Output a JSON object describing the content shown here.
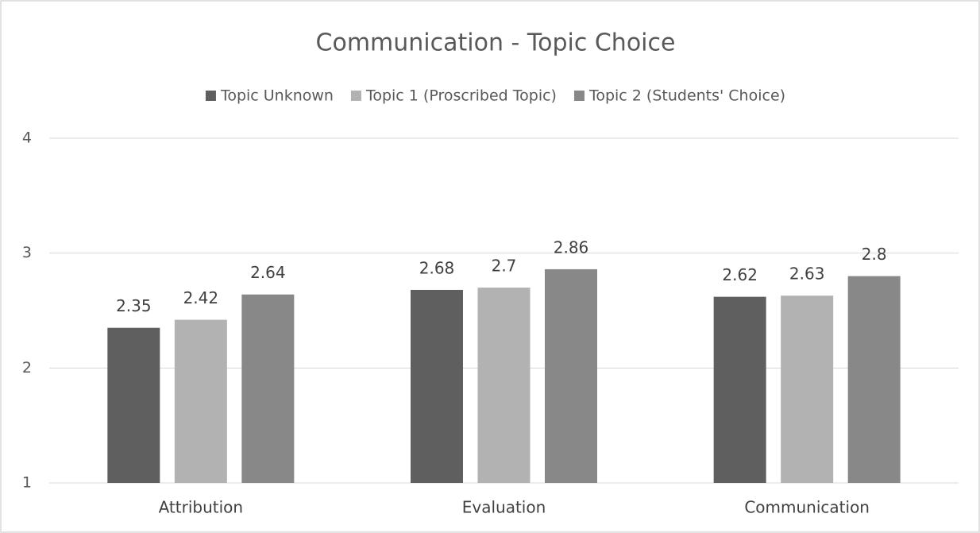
{
  "chart_data": {
    "type": "bar",
    "title": "Communication - Topic Choice",
    "categories": [
      "Attribution",
      "Evaluation",
      "Communication"
    ],
    "series": [
      {
        "name": "Topic Unknown",
        "color": "#5f5f5f",
        "values": [
          2.35,
          2.68,
          2.62
        ]
      },
      {
        "name": "Topic 1 (Proscribed Topic)",
        "color": "#b2b2b2",
        "values": [
          2.42,
          2.7,
          2.63
        ]
      },
      {
        "name": "Topic 2 (Students' Choice)",
        "color": "#888888",
        "values": [
          2.64,
          2.86,
          2.8
        ]
      }
    ],
    "ylim": [
      1,
      4
    ],
    "yticks": [
      1,
      2,
      3,
      4
    ],
    "grid": true,
    "legend": "top"
  }
}
